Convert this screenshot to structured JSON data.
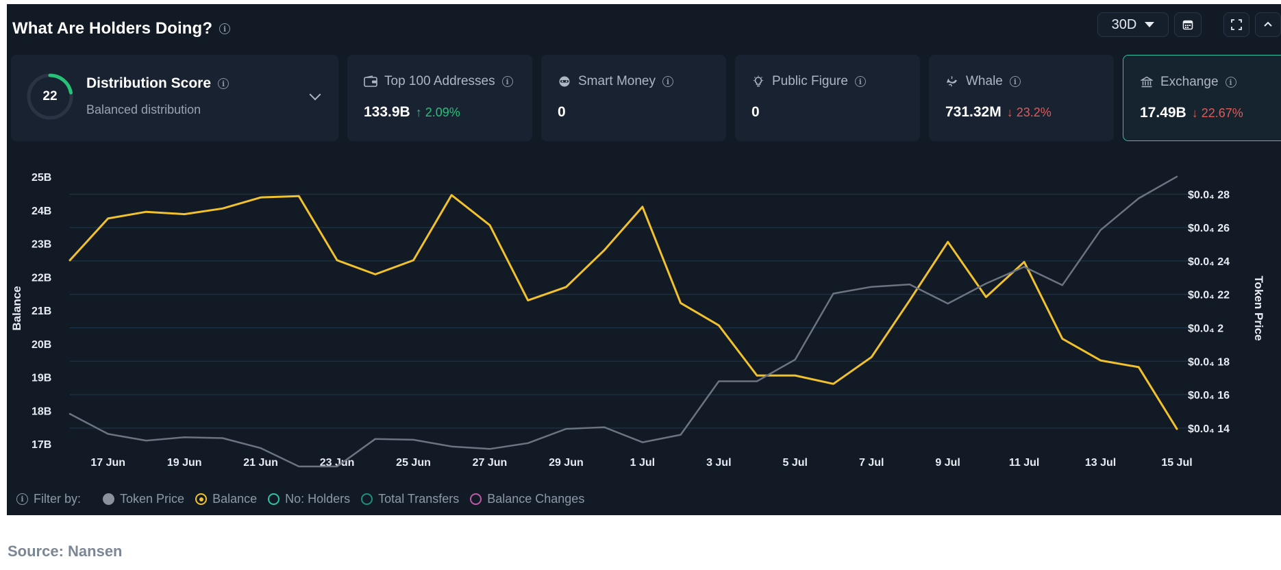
{
  "header": {
    "title": "What Are Holders Doing?",
    "range_label": "30D"
  },
  "distribution": {
    "score": "22",
    "title": "Distribution Score",
    "subtitle": "Balanced distribution"
  },
  "cards": [
    {
      "label": "Top 100 Addresses",
      "value": "133.9B",
      "change": "2.09%",
      "direction": "up",
      "icon": "wallet-icon",
      "active": false
    },
    {
      "label": "Smart Money",
      "value": "0",
      "change": "",
      "direction": "",
      "icon": "mask-icon",
      "active": false
    },
    {
      "label": "Public Figure",
      "value": "0",
      "change": "",
      "direction": "",
      "icon": "bulb-icon",
      "active": false
    },
    {
      "label": "Whale",
      "value": "731.32M",
      "change": "23.2%",
      "direction": "down",
      "icon": "whale-icon",
      "active": false
    },
    {
      "label": "Exchange",
      "value": "17.49B",
      "change": "22.67%",
      "direction": "down",
      "icon": "bank-icon",
      "active": true
    }
  ],
  "legend": {
    "filter_label": "Filter by:",
    "items": [
      {
        "label": "Token Price",
        "style": "filled",
        "color": "#8a929e"
      },
      {
        "label": "Balance",
        "style": "selected",
        "color": "#f2c22c"
      },
      {
        "label": "No: Holders",
        "style": "outline",
        "color": "#2ec4a6"
      },
      {
        "label": "Total Transfers",
        "style": "outline",
        "color": "#1f8f7a"
      },
      {
        "label": "Balance Changes",
        "style": "outline",
        "color": "#c05aa8"
      }
    ]
  },
  "source": "Source: Nansen",
  "colors": {
    "background": "#121a26",
    "card": "#182231",
    "balance_line": "#f2c22c",
    "price_line": "#6b7480",
    "grid": "#1f3a4e",
    "up": "#27c27a",
    "down": "#e05a5a",
    "active_border": "#2ec4a6"
  },
  "chart_data": {
    "type": "line",
    "x": [
      "16 Jun",
      "17 Jun",
      "18 Jun",
      "19 Jun",
      "20 Jun",
      "21 Jun",
      "22 Jun",
      "23 Jun",
      "24 Jun",
      "25 Jun",
      "26 Jun",
      "27 Jun",
      "28 Jun",
      "29 Jun",
      "30 Jun",
      "1 Jul",
      "2 Jul",
      "3 Jul",
      "4 Jul",
      "5 Jul",
      "6 Jul",
      "7 Jul",
      "8 Jul",
      "9 Jul",
      "10 Jul",
      "11 Jul",
      "12 Jul",
      "13 Jul",
      "14 Jul",
      "15 Jul"
    ],
    "x_tick_labels": [
      "17 Jun",
      "19 Jun",
      "21 Jun",
      "23 Jun",
      "25 Jun",
      "27 Jun",
      "29 Jun",
      "1 Jul",
      "3 Jul",
      "5 Jul",
      "7 Jul",
      "9 Jul",
      "11 Jul",
      "13 Jul",
      "15 Jul"
    ],
    "xlabel": "",
    "ylabel": "Balance",
    "y2label": "Token Price",
    "y_ticks": [
      "25B",
      "24B",
      "23B",
      "22B",
      "21B",
      "20B",
      "19B",
      "18B",
      "17B"
    ],
    "y2_ticks": [
      "$0.0₄ 28",
      "$0.0₄ 26",
      "$0.0₄ 24",
      "$0.0₄ 22",
      "$0.0₄ 2",
      "$0.0₄ 18",
      "$0.0₄ 16",
      "$0.0₄ 14"
    ],
    "ylim": [
      17,
      25
    ],
    "y2lim": [
      0.1305,
      0.2904
    ],
    "y_unit": "B",
    "series": [
      {
        "name": "Balance",
        "axis": "left",
        "color": "#f2c22c",
        "values": [
          22.5,
          23.75,
          23.95,
          23.88,
          24.05,
          24.38,
          24.42,
          22.5,
          22.08,
          22.5,
          24.45,
          23.55,
          21.3,
          21.7,
          22.8,
          24.1,
          21.22,
          20.55,
          19.05,
          19.05,
          18.8,
          19.6,
          21.3,
          23.05,
          21.4,
          22.45,
          20.15,
          19.5,
          19.3,
          17.45
        ]
      },
      {
        "name": "Token Price",
        "axis": "right",
        "color": "#6b7480",
        "values": [
          0.1485,
          0.1365,
          0.1325,
          0.1345,
          0.134,
          0.128,
          0.117,
          0.117,
          0.1335,
          0.133,
          0.129,
          0.1275,
          0.131,
          0.1395,
          0.1405,
          0.1315,
          0.136,
          0.168,
          0.168,
          0.181,
          0.2205,
          0.2245,
          0.226,
          0.2145,
          0.2265,
          0.2365,
          0.2255,
          0.2585,
          0.2775,
          0.2905
        ]
      }
    ],
    "grid": true
  }
}
